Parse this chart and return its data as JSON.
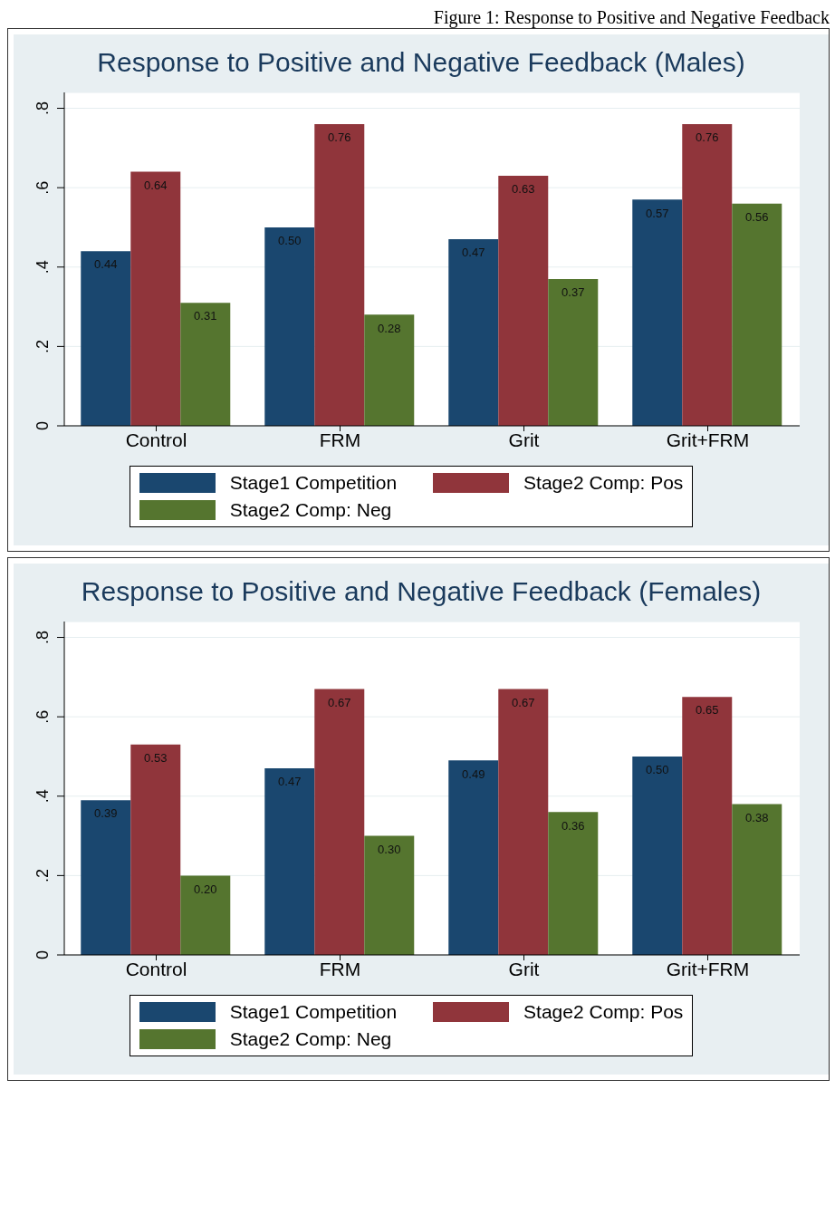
{
  "chart_data": [
    {
      "type": "bar",
      "title": "Response to Positive and Negative Feedback (Males)",
      "annotations": [
        "Figure 1: Response to Positive and Negative Feedback"
      ],
      "categories": [
        "Control",
        "FRM",
        "Grit",
        "Grit+FRM"
      ],
      "series": [
        {
          "name": "Stage1 Competition",
          "color": "#1a476f",
          "values": [
            0.44,
            0.5,
            0.47,
            0.57
          ],
          "value_labels": [
            "0.44",
            "0.50",
            "0.47",
            "0.57"
          ]
        },
        {
          "name": "Stage2 Comp: Pos",
          "color": "#90353b",
          "values": [
            0.64,
            0.76,
            0.63,
            0.76
          ],
          "value_labels": [
            "0.64",
            "0.76",
            "0.63",
            "0.76"
          ]
        },
        {
          "name": "Stage2 Comp: Neg",
          "color": "#55752f",
          "values": [
            0.31,
            0.28,
            0.37,
            0.56
          ],
          "value_labels": [
            "0.31",
            "0.28",
            "0.37",
            "0.56"
          ]
        }
      ],
      "ylim": [
        0,
        0.84
      ],
      "yticks": [
        0,
        {
          "value": 0.2,
          "label": ".2"
        },
        {
          "value": 0.4,
          "label": ".4"
        },
        {
          "value": 0.6,
          "label": ".6"
        },
        {
          "value": 0.8,
          "label": ".8"
        }
      ],
      "grid": "y",
      "legend": "bottom"
    },
    {
      "type": "bar",
      "title": "Response to Positive and Negative Feedback (Females)",
      "categories": [
        "Control",
        "FRM",
        "Grit",
        "Grit+FRM"
      ],
      "series": [
        {
          "name": "Stage1 Competition",
          "color": "#1a476f",
          "values": [
            0.39,
            0.47,
            0.49,
            0.5
          ],
          "value_labels": [
            "0.39",
            "0.47",
            "0.49",
            "0.50"
          ]
        },
        {
          "name": "Stage2 Comp: Pos",
          "color": "#90353b",
          "values": [
            0.53,
            0.67,
            0.67,
            0.65
          ],
          "value_labels": [
            "0.53",
            "0.67",
            "0.67",
            "0.65"
          ]
        },
        {
          "name": "Stage2 Comp: Neg",
          "color": "#55752f",
          "values": [
            0.2,
            0.3,
            0.36,
            0.38
          ],
          "value_labels": [
            "0.20",
            "0.30",
            "0.36",
            "0.38"
          ]
        }
      ],
      "ylim": [
        0,
        0.84
      ],
      "yticks": [
        0,
        {
          "value": 0.2,
          "label": ".2"
        },
        {
          "value": 0.4,
          "label": ".4"
        },
        {
          "value": 0.6,
          "label": ".6"
        },
        {
          "value": 0.8,
          "label": ".8"
        }
      ],
      "grid": "y",
      "legend": "bottom"
    }
  ]
}
